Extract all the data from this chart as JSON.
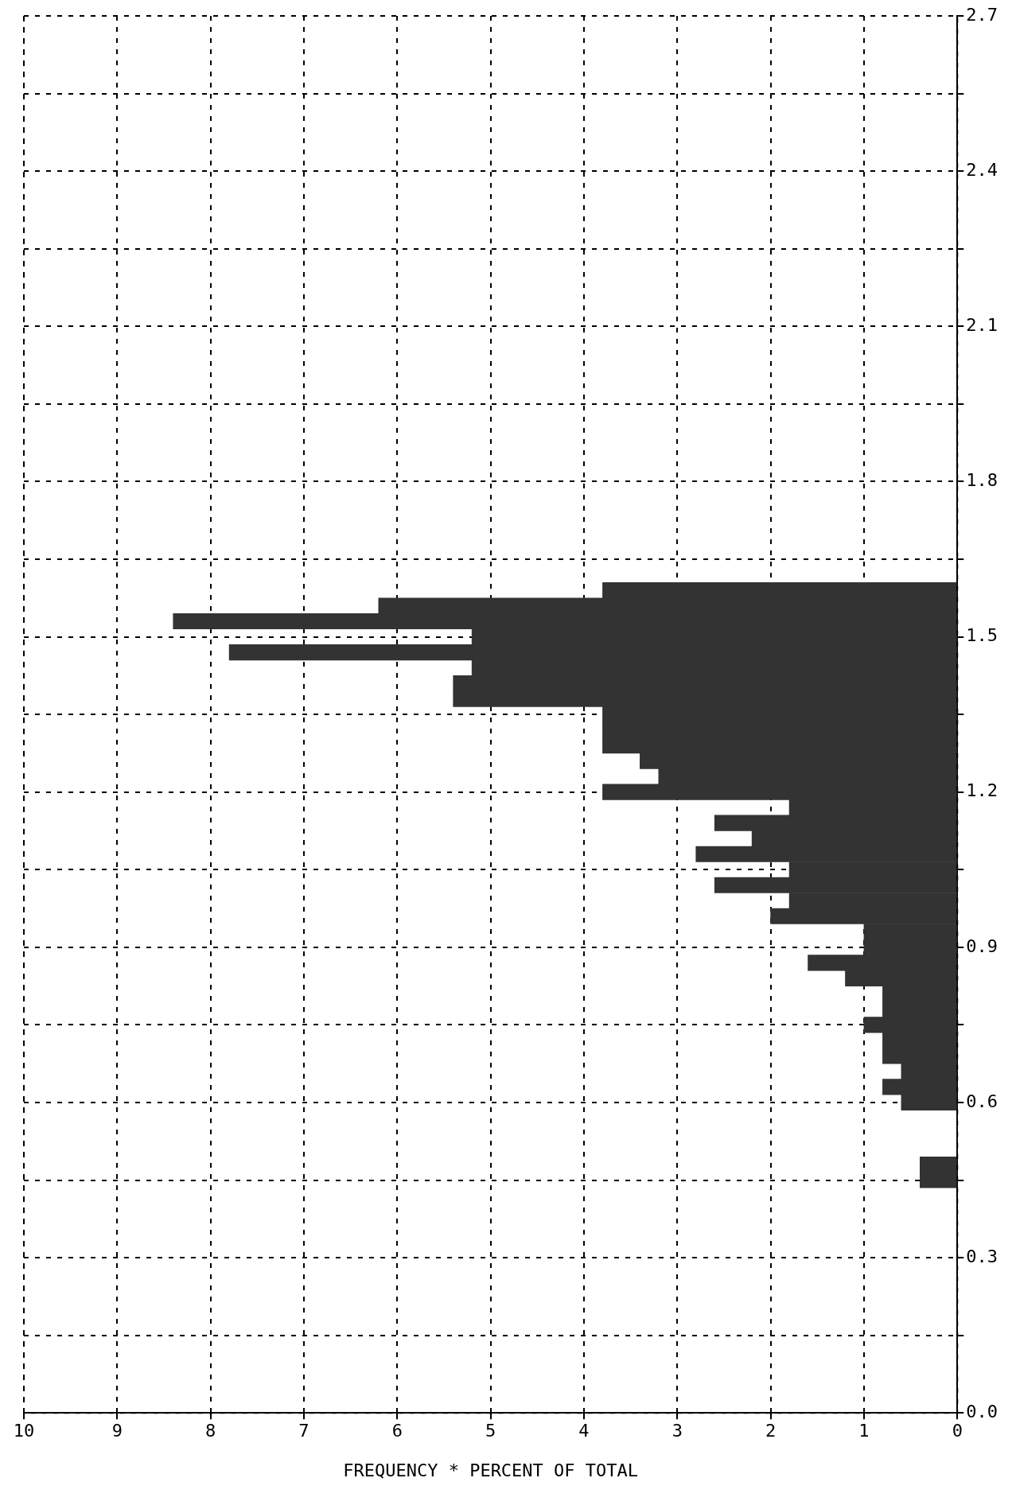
{
  "chart_data": {
    "type": "histogram",
    "orientation": "horizontal",
    "xlabel": "FREQUENCY * PERCENT OF TOTAL",
    "color": "#333333",
    "grid": true,
    "bins": [
      0.435,
      0.465,
      0.495,
      0.525,
      0.555,
      0.585,
      0.615,
      0.645,
      0.675,
      0.705,
      0.735,
      0.765,
      0.795,
      0.825,
      0.855,
      0.885,
      0.915,
      0.945,
      0.975,
      1.005,
      1.035,
      1.065,
      1.095,
      1.125,
      1.155,
      1.185,
      1.215,
      1.245,
      1.275,
      1.305,
      1.335,
      1.365,
      1.395,
      1.425,
      1.455,
      1.485,
      1.515,
      1.545,
      1.575,
      1.605
    ],
    "values": [
      0.4,
      0.4,
      0,
      0,
      0,
      0.6,
      0.8,
      0.6,
      0.8,
      0.8,
      1.0,
      0.8,
      0.8,
      1.2,
      1.6,
      1.0,
      1.0,
      2.0,
      1.8,
      2.6,
      1.8,
      2.8,
      2.2,
      2.6,
      1.8,
      3.8,
      3.2,
      3.4,
      3.8,
      3.8,
      3.8,
      5.4,
      5.4,
      5.2,
      7.8,
      5.2,
      8.4,
      6.2,
      3.8
    ],
    "xlim": [
      10,
      0
    ],
    "xticks": [
      10,
      9,
      8,
      7,
      6,
      5,
      4,
      3,
      2,
      1,
      0
    ],
    "ylim": [
      0,
      2.7
    ],
    "yticks": [
      {
        "value": 0,
        "label": "0.0"
      },
      {
        "value": 0.15,
        "label": null
      },
      0.3,
      {
        "value": 0.45,
        "label": null
      },
      0.6,
      {
        "value": 0.75,
        "label": null
      },
      0.9,
      {
        "value": 1.05,
        "label": null
      },
      1.2,
      {
        "value": 1.35,
        "label": null
      },
      1.5,
      {
        "value": 1.65,
        "label": null
      },
      1.8,
      {
        "value": 1.95,
        "label": null
      },
      2.1,
      {
        "value": 2.25,
        "label": null
      },
      2.4,
      {
        "value": 2.55,
        "label": null
      },
      2.7
    ]
  }
}
